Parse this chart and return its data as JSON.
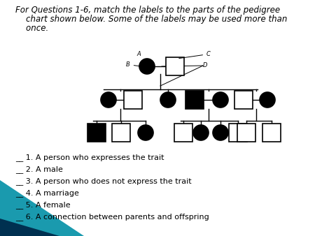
{
  "title_line1": "For Questions 1-6, match the labels to the parts of the pedigree",
  "title_line2": "    chart shown below. Some of the labels may be used more than",
  "title_line3": "    once.",
  "title_fontsize": 8.5,
  "questions": [
    "__ 1. A person who expresses the trait",
    "__ 2. A male",
    "__ 3. A person who does not express the trait",
    "__ 4. A marriage",
    "__ 5. A female",
    "__ 6. A connection between parents and offspring"
  ],
  "q_fontsize": 8.0,
  "label_fontsize": 6.0,
  "teal1": "#1a8a9e",
  "teal2": "#1060a0",
  "black_teal": "#004060"
}
